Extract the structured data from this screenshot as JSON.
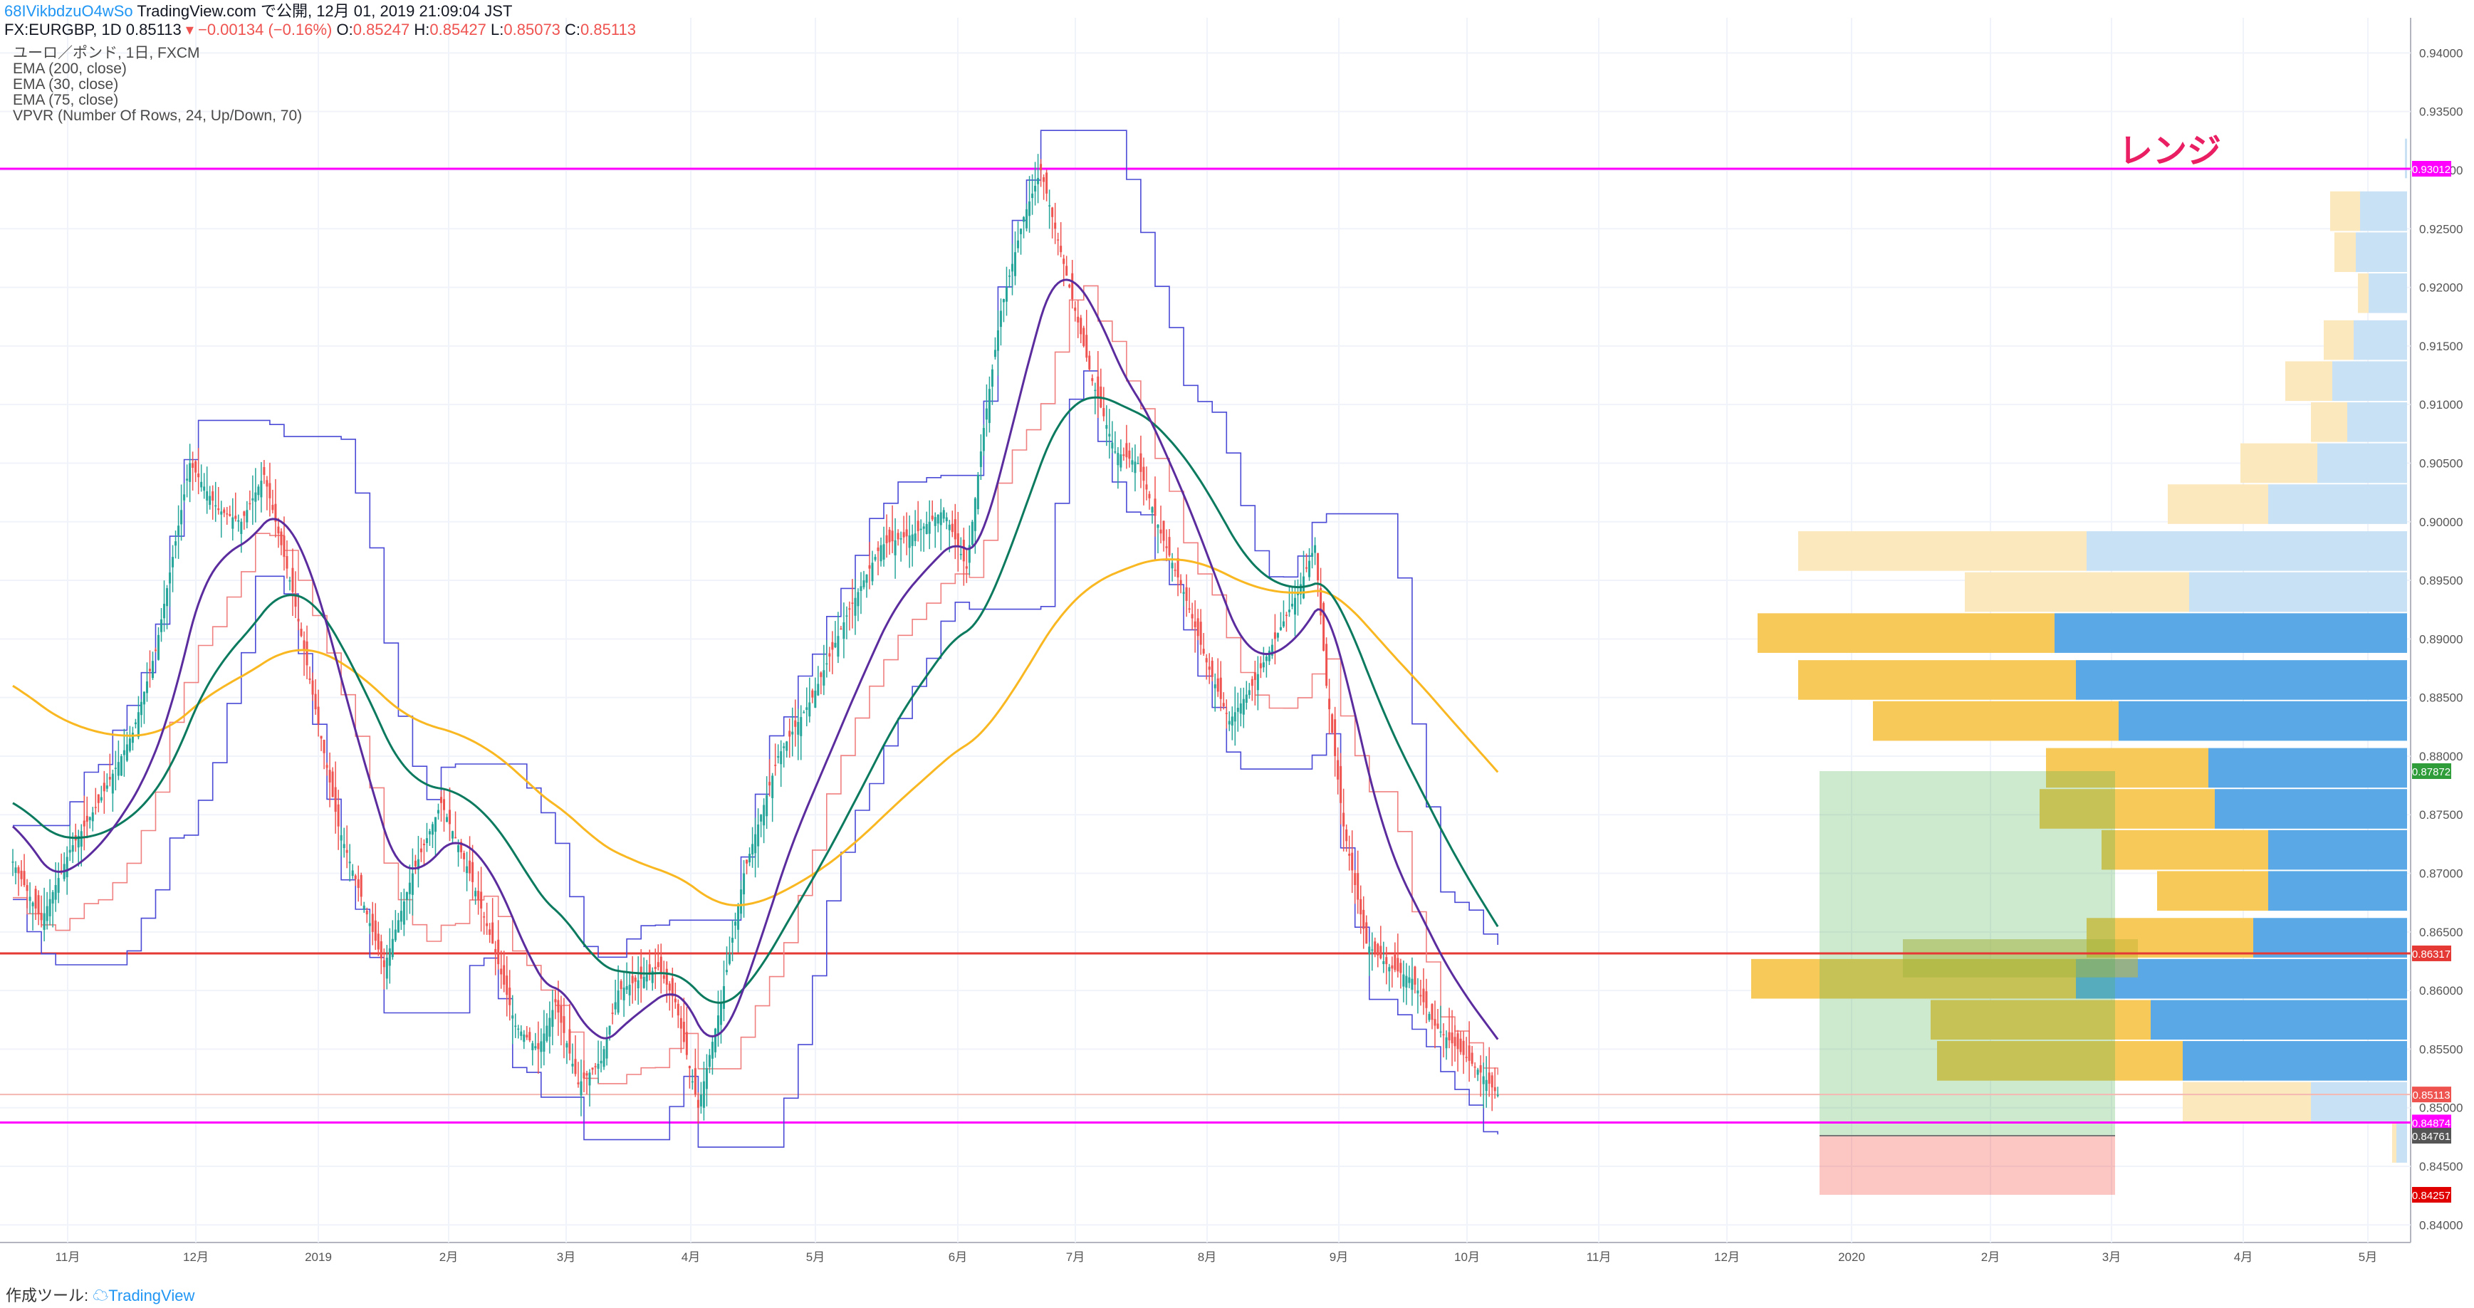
{
  "header": {
    "author": "68IVikbdzuO4wSo",
    "published": "TradingView.com で公開, 12月 01, 2019 21:09:04 JST",
    "symbol": "FX:EURGBP, 1D",
    "last": "0.85113",
    "change": "−0.00134 (−0.16%)",
    "o_label": "O:",
    "o": "0.85247",
    "h_label": "H:",
    "h": "0.85427",
    "l_label": "L:",
    "l": "0.85073",
    "c_label": "C:",
    "c": "0.85113"
  },
  "legend": {
    "title": "ユーロ／ポンド, 1日, FXCM",
    "indicators": [
      "EMA (200, close)",
      "EMA (30, close)",
      "EMA (75, close)",
      "VPVR (Number Of Rows, 24, Up/Down, 70)"
    ]
  },
  "annotation": "レンジ",
  "footer": {
    "made_with": "作成ツール:",
    "brand": "TradingView"
  },
  "colors": {
    "up": "#26a69a",
    "down": "#ef5350",
    "ema200": "#f9b822",
    "ema30": "#5b2c9e",
    "ema75": "#0b7a5e",
    "magenta": "#ff00ff",
    "red_line": "#e53935",
    "vp_up_strong": "#5aa9e6",
    "vp_down_strong": "#f7c958",
    "vp_up_light": "#c8e1f5",
    "vp_down_light": "#fce8bd"
  },
  "chart_data": {
    "type": "candlestick",
    "ylim": [
      0.8385,
      0.943
    ],
    "y_ticks": [
      "0.84000",
      "0.84500",
      "0.85000",
      "0.85500",
      "0.86000",
      "0.86500",
      "0.87000",
      "0.87500",
      "0.88000",
      "0.88500",
      "0.89000",
      "0.89500",
      "0.90000",
      "0.90500",
      "0.91000",
      "0.91500",
      "0.92000",
      "0.92500",
      "0.93000",
      "0.93500",
      "0.94000"
    ],
    "x_ticks": [
      "11月",
      "12月",
      "2019",
      "2月",
      "3月",
      "4月",
      "5月",
      "6月",
      "7月",
      "8月",
      "9月",
      "10月",
      "11月",
      "12月",
      "2020",
      "2月",
      "3月",
      "4月",
      "5月"
    ],
    "horizontal_lines": [
      {
        "label": "0.93012",
        "value": 0.93012,
        "color": "#ff00ff"
      },
      {
        "label": "0.84874",
        "value": 0.84874,
        "color": "#ff00ff"
      },
      {
        "label": "0.86317",
        "value": 0.86317,
        "color": "#e53935"
      }
    ],
    "price_labels": [
      {
        "text": "0.93012",
        "value": 0.93012,
        "bg": "#ff00ff"
      },
      {
        "text": "0.87872",
        "value": 0.87872,
        "bg": "#2e9d3a"
      },
      {
        "text": "0.86317",
        "value": 0.86317,
        "bg": "#e53935"
      },
      {
        "text": "0.85113",
        "value": 0.85113,
        "bg": "#ef5350"
      },
      {
        "text": "0.84874",
        "value": 0.84874,
        "bg": "#ff00ff"
      },
      {
        "text": "0.84761",
        "value": 0.84761,
        "bg": "#555555"
      },
      {
        "text": "0.84257",
        "value": 0.84257,
        "bg": "#e00000"
      }
    ],
    "position_box": {
      "entry": 0.84761,
      "target": 0.87872,
      "stop": 0.84257
    },
    "close_path": [
      [
        0,
        0.871
      ],
      [
        10,
        0.866
      ],
      [
        20,
        0.872
      ],
      [
        30,
        0.876
      ],
      [
        42,
        0.882
      ],
      [
        50,
        0.889
      ],
      [
        62,
        0.905
      ],
      [
        72,
        0.901
      ],
      [
        80,
        0.9
      ],
      [
        88,
        0.904
      ],
      [
        98,
        0.894
      ],
      [
        106,
        0.884
      ],
      [
        114,
        0.874
      ],
      [
        122,
        0.868
      ],
      [
        130,
        0.862
      ],
      [
        140,
        0.87
      ],
      [
        150,
        0.876
      ],
      [
        160,
        0.87
      ],
      [
        168,
        0.864
      ],
      [
        176,
        0.857
      ],
      [
        184,
        0.855
      ],
      [
        190,
        0.859
      ],
      [
        198,
        0.852
      ],
      [
        206,
        0.854
      ],
      [
        212,
        0.86
      ],
      [
        220,
        0.861
      ],
      [
        226,
        0.862
      ],
      [
        232,
        0.859
      ],
      [
        240,
        0.85
      ],
      [
        248,
        0.859
      ],
      [
        256,
        0.87
      ],
      [
        268,
        0.88
      ],
      [
        280,
        0.885
      ],
      [
        292,
        0.892
      ],
      [
        304,
        0.898
      ],
      [
        316,
        0.899
      ],
      [
        326,
        0.901
      ],
      [
        334,
        0.896
      ],
      [
        340,
        0.908
      ],
      [
        346,
        0.918
      ],
      [
        354,
        0.926
      ],
      [
        360,
        0.93
      ],
      [
        366,
        0.924
      ],
      [
        372,
        0.918
      ],
      [
        378,
        0.912
      ],
      [
        386,
        0.906
      ],
      [
        394,
        0.905
      ],
      [
        402,
        0.899
      ],
      [
        410,
        0.894
      ],
      [
        418,
        0.888
      ],
      [
        426,
        0.883
      ],
      [
        434,
        0.886
      ],
      [
        442,
        0.89
      ],
      [
        450,
        0.894
      ],
      [
        456,
        0.898
      ],
      [
        460,
        0.886
      ],
      [
        466,
        0.874
      ],
      [
        474,
        0.864
      ],
      [
        482,
        0.862
      ],
      [
        490,
        0.861
      ],
      [
        498,
        0.857
      ],
      [
        506,
        0.855
      ],
      [
        514,
        0.853
      ],
      [
        520,
        0.8511
      ]
    ],
    "volume_profile_rows": [
      {
        "price": 0.931,
        "up": 0.01,
        "down": 0.0
      },
      {
        "price": 0.9265,
        "up": 0.22,
        "down": 0.14
      },
      {
        "price": 0.923,
        "up": 0.24,
        "down": 0.1
      },
      {
        "price": 0.9195,
        "up": 0.18,
        "down": 0.05
      },
      {
        "price": 0.9155,
        "up": 0.25,
        "down": 0.14
      },
      {
        "price": 0.912,
        "up": 0.35,
        "down": 0.22
      },
      {
        "price": 0.9085,
        "up": 0.28,
        "down": 0.17
      },
      {
        "price": 0.905,
        "up": 0.42,
        "down": 0.36
      },
      {
        "price": 0.9015,
        "up": 0.65,
        "down": 0.47
      },
      {
        "price": 0.8975,
        "up": 1.5,
        "down": 1.35
      },
      {
        "price": 0.894,
        "up": 1.02,
        "down": 1.05
      },
      {
        "price": 0.8905,
        "up": 1.65,
        "down": 1.39
      },
      {
        "price": 0.8865,
        "up": 1.55,
        "down": 1.3
      },
      {
        "price": 0.883,
        "up": 1.35,
        "down": 1.15
      },
      {
        "price": 0.879,
        "up": 0.93,
        "down": 0.76
      },
      {
        "price": 0.8755,
        "up": 0.9,
        "down": 0.82
      },
      {
        "price": 0.872,
        "up": 0.65,
        "down": 0.78
      },
      {
        "price": 0.8685,
        "up": 0.65,
        "down": 0.52
      },
      {
        "price": 0.8645,
        "up": 0.72,
        "down": 0.78
      },
      {
        "price": 0.861,
        "up": 1.55,
        "down": 1.52
      },
      {
        "price": 0.8575,
        "up": 1.2,
        "down": 1.03
      },
      {
        "price": 0.854,
        "up": 1.05,
        "down": 1.15
      },
      {
        "price": 0.8505,
        "up": 0.45,
        "down": 0.6
      },
      {
        "price": 0.847,
        "up": 0.05,
        "down": 0.02
      }
    ]
  }
}
